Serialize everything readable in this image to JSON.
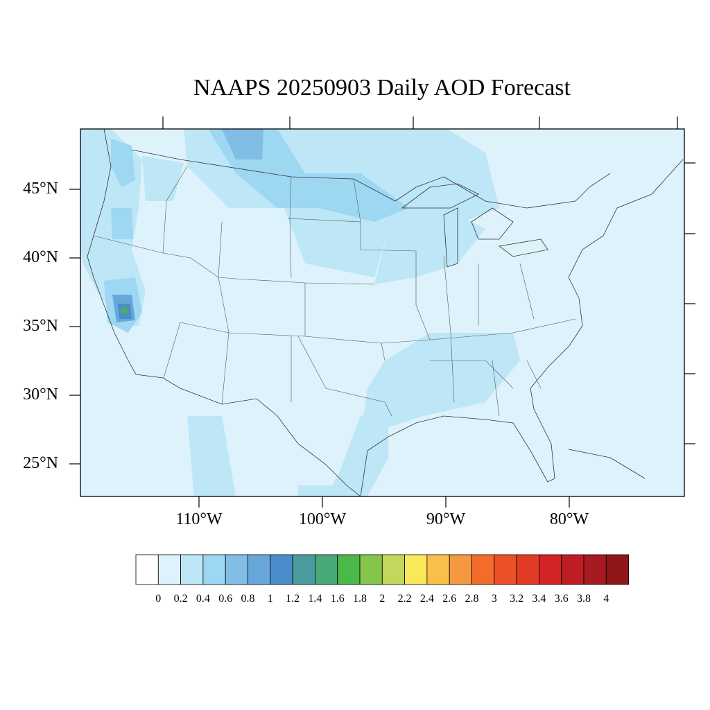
{
  "title": "NAAPS 20250903 Daily AOD Forecast",
  "colors": {
    "ocean_background": "#def2fb",
    "border": "#000000",
    "state_lines": "#555555"
  },
  "map": {
    "projection": "cylindrical-equidistant",
    "lon_range": [
      -119,
      -70
    ],
    "lat_range": [
      22.5,
      49.5
    ],
    "lat_ticks": [
      "45°N",
      "40°N",
      "35°N",
      "30°N",
      "25°N"
    ],
    "lat_values": [
      45,
      40,
      35,
      30,
      25
    ],
    "lon_ticks": [
      "110°W",
      "100°W",
      "90°W",
      "80°W"
    ],
    "lon_values": [
      -110,
      -100,
      -90,
      -80
    ]
  },
  "colorbar": {
    "labels": [
      "0",
      "0.2",
      "0.4",
      "0.6",
      "0.8",
      "1",
      "1.2",
      "1.4",
      "1.6",
      "1.8",
      "2",
      "2.2",
      "2.4",
      "2.6",
      "2.8",
      "3",
      "3.2",
      "3.4",
      "3.6",
      "3.8",
      "4"
    ],
    "colors": [
      "#ffffff",
      "#def2fb",
      "#bde6f7",
      "#9ed7f2",
      "#82bde6",
      "#68a7dc",
      "#4b8dca",
      "#4a9c9f",
      "#48a878",
      "#4bb84a",
      "#86c54c",
      "#c2d75b",
      "#f8e85a",
      "#f8c04a",
      "#f6983f",
      "#f36c2c",
      "#ec5029",
      "#e23c27",
      "#d42326",
      "#bf1d24",
      "#a61a21",
      "#8f1719"
    ]
  }
}
